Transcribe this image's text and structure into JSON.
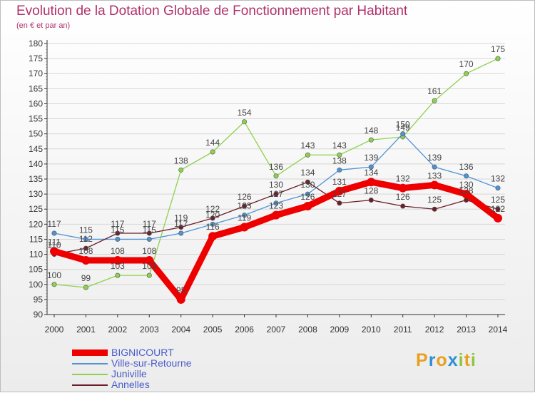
{
  "header": {
    "title": "Evolution de la Dotation Globale de Fonctionnement par Habitant",
    "subtitle": "(en € et par an)"
  },
  "chart_data": {
    "type": "line",
    "title": "Evolution de la Dotation Globale de Fonctionnement par Habitant",
    "subtitle": "(en € et par an)",
    "xlabel": "",
    "ylabel": "",
    "categories": [
      "2000",
      "2001",
      "2002",
      "2003",
      "2004",
      "2005",
      "2006",
      "2007",
      "2008",
      "2009",
      "2010",
      "2011",
      "2012",
      "2013",
      "2014"
    ],
    "ylim": [
      90,
      180
    ],
    "yticks": [
      90,
      95,
      100,
      105,
      110,
      115,
      120,
      125,
      130,
      135,
      140,
      145,
      150,
      155,
      160,
      165,
      170,
      175,
      180
    ],
    "grid": true,
    "legend_position": "bottom-left",
    "series": [
      {
        "name": "BIGNICOURT",
        "color": "#ee0000",
        "values": [
          111,
          108,
          108,
          108,
          95,
          116,
          119,
          123,
          126,
          131,
          134,
          132,
          133,
          130,
          122
        ]
      },
      {
        "name": "Ville-sur-Retourne",
        "color": "#4f93d6",
        "values": [
          117,
          115,
          115,
          115,
          117,
          120,
          123,
          127,
          130,
          138,
          139,
          150,
          139,
          136,
          132
        ]
      },
      {
        "name": "Juniville",
        "color": "#8fd14f",
        "values": [
          100,
          99,
          103,
          103,
          138,
          144,
          154,
          136,
          143,
          143,
          148,
          149,
          161,
          170,
          175
        ]
      },
      {
        "name": "Annelles",
        "color": "#6b1f2a",
        "values": [
          110,
          112,
          117,
          117,
          119,
          122,
          126,
          130,
          134,
          127,
          128,
          126,
          125,
          128,
          125
        ]
      }
    ]
  },
  "brand": {
    "letters": [
      "P",
      "r",
      "o",
      "x",
      "i",
      "t",
      "i"
    ],
    "colors": [
      "#e8a020",
      "#2f8fd6",
      "#e8a020",
      "#2f8fd6",
      "#8cc63f",
      "#e8a020",
      "#8cc63f"
    ]
  }
}
